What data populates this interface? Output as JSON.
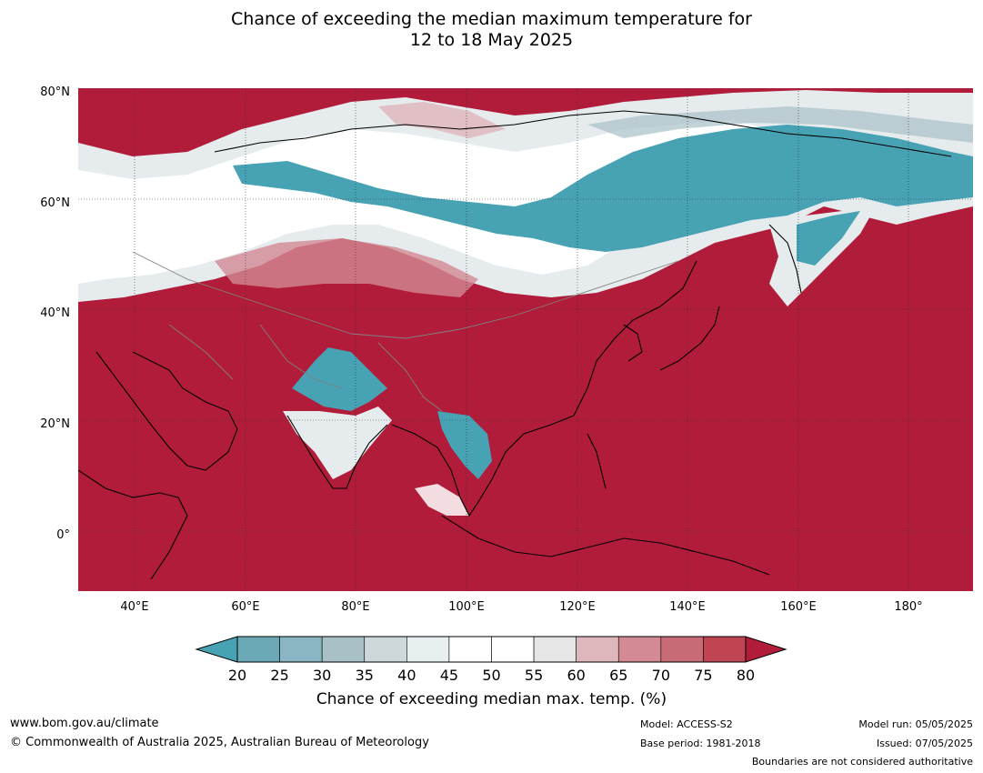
{
  "title": {
    "line1": "Chance of exceeding the median maximum temperature for",
    "line2": "12 to 18 May 2025"
  },
  "map": {
    "lat_labels": [
      "80°N",
      "60°N",
      "40°N",
      "20°N",
      "0°"
    ],
    "lon_labels": [
      "40°E",
      "60°E",
      "80°E",
      "100°E",
      "120°E",
      "140°E",
      "160°E",
      "180°"
    ],
    "lat_range": [
      -10,
      80
    ],
    "lon_range": [
      30,
      191
    ],
    "grid_lines": true,
    "colors": {
      "high": "#b01c3a",
      "mid_high": "#c14a58",
      "pink": "#dfb8bd",
      "near_median": "#ffffff",
      "light_grey": "#e6ecee",
      "blue_grey": "#a8c1c6",
      "blue": "#47a2b4",
      "coast": "#000000",
      "border": "#808080"
    }
  },
  "colorbar": {
    "tick_labels": [
      "20",
      "25",
      "30",
      "35",
      "40",
      "45",
      "50",
      "55",
      "60",
      "65",
      "70",
      "75",
      "80"
    ],
    "colors": [
      "#47a2b4",
      "#6ba9b7",
      "#89b6c2",
      "#a8c1c6",
      "#cdd8db",
      "#e8eff1",
      "#ffffff",
      "#ffffff",
      "#e6e6e6",
      "#deb7bc",
      "#d38a94",
      "#c86b76",
      "#c04553",
      "#b01c3a"
    ],
    "title": "Chance of exceeding median max. temp. (%)"
  },
  "footer": {
    "url": "www.bom.gov.au/climate",
    "copyright": "© Commonwealth of Australia 2025, Australian Bureau of Meteorology",
    "model": "Model: ACCESS-S2",
    "base_period": "Base period: 1981-2018",
    "model_run": "Model run: 05/05/2025",
    "issued": "Issued: 07/05/2025",
    "disclaimer": "Boundaries are not considered authoritative"
  }
}
